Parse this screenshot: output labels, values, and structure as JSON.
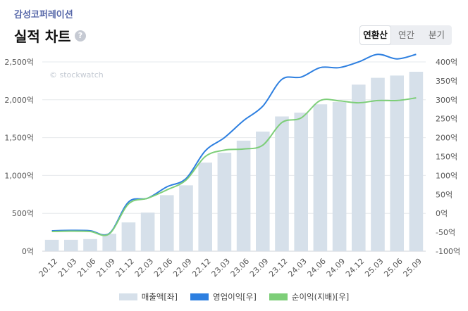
{
  "header": {
    "company": "감성코퍼레이션",
    "title": "실적 차트",
    "help_icon": "?",
    "tabs": [
      {
        "label": "연환산",
        "active": true
      },
      {
        "label": "연간",
        "active": false
      },
      {
        "label": "분기",
        "active": false
      }
    ]
  },
  "chart_data": {
    "type": "bar+line",
    "watermark": "© stockwatch",
    "categories": [
      "20.12",
      "21.03",
      "21.06",
      "21.09",
      "21.12",
      "22.03",
      "22.06",
      "22.09",
      "22.12",
      "23.03",
      "23.06",
      "23.09",
      "23.12",
      "24.03",
      "24.06",
      "24.09",
      "24.12",
      "25.03",
      "25.06",
      "25.09"
    ],
    "left_axis": {
      "min": 0,
      "max": 2500,
      "ticks": [
        0,
        500,
        1000,
        1500,
        2000,
        2500
      ],
      "labels": [
        "0억",
        "500억",
        "1,000억",
        "1,500억",
        "2,000억",
        "2,500억"
      ]
    },
    "right_axis": {
      "min": -100,
      "max": 400,
      "ticks": [
        -100,
        -50,
        0,
        50,
        100,
        150,
        200,
        250,
        300,
        350,
        400
      ],
      "labels": [
        "-100억",
        "-50억",
        "0억",
        "50억",
        "100억",
        "150억",
        "200억",
        "250억",
        "300억",
        "350억",
        "400억"
      ]
    },
    "series": [
      {
        "name": "매출액[좌]",
        "type": "bar",
        "axis": "left",
        "color": "#d6e0ea",
        "values": [
          150,
          150,
          160,
          230,
          380,
          510,
          740,
          870,
          1170,
          1300,
          1460,
          1580,
          1780,
          1830,
          1940,
          1970,
          2200,
          2290,
          2320,
          2370
        ]
      },
      {
        "name": "영업이익[우]",
        "type": "line",
        "axis": "right",
        "color": "#2d7fe0",
        "values": [
          -46,
          -45,
          -46,
          -53,
          30,
          40,
          70,
          92,
          165,
          200,
          245,
          283,
          354,
          360,
          385,
          385,
          400,
          420,
          408,
          420
        ]
      },
      {
        "name": "순이익(지배)[우]",
        "type": "line",
        "axis": "right",
        "color": "#7dce78",
        "values": [
          -48,
          -47,
          -48,
          -54,
          25,
          40,
          62,
          88,
          150,
          167,
          170,
          180,
          240,
          252,
          298,
          297,
          292,
          298,
          298,
          305
        ]
      }
    ]
  }
}
